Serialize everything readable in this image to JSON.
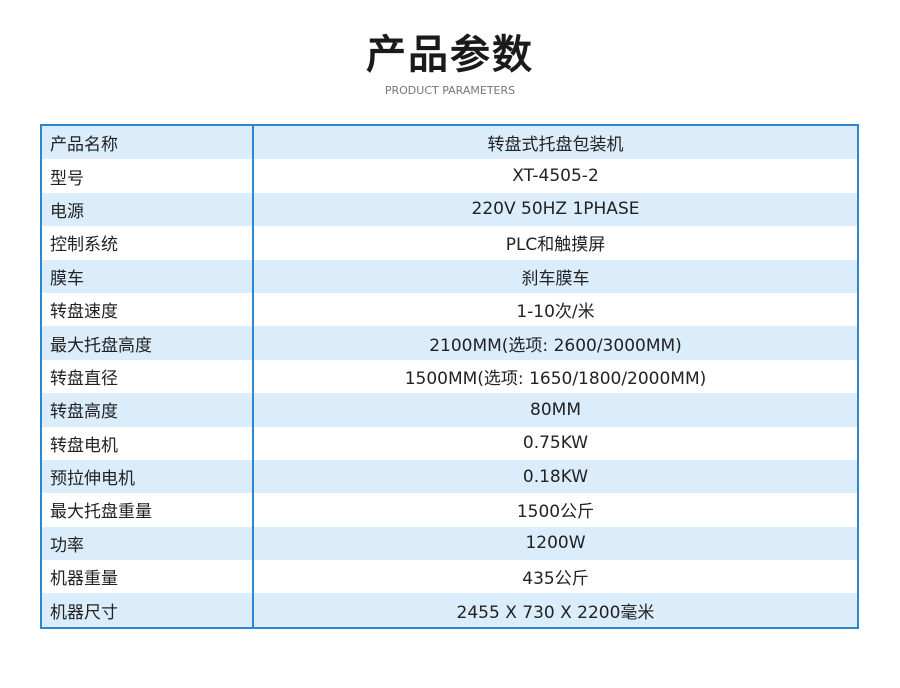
{
  "header": {
    "title": "产品参数",
    "subtitle": "PRODUCT PARAMETERS"
  },
  "table": {
    "rows": [
      [
        "产品名称",
        "转盘式托盘包装机"
      ],
      [
        "型号",
        "XT-4505-2"
      ],
      [
        "电源",
        "220V 50HZ 1PHASE"
      ],
      [
        "控制系统",
        "PLC和触摸屏"
      ],
      [
        "膜车",
        "刹车膜车"
      ],
      [
        "转盘速度",
        "1-10次/米"
      ],
      [
        "最大托盘高度",
        "2100MM(选项: 2600/3000MM)"
      ],
      [
        "转盘直径",
        "1500MM(选项: 1650/1800/2000MM)"
      ],
      [
        "转盘高度",
        "80MM"
      ],
      [
        "转盘电机",
        "0.75KW"
      ],
      [
        "预拉伸电机",
        "0.18KW"
      ],
      [
        "最大托盘重量",
        "1500公斤"
      ],
      [
        "功率",
        "1200W"
      ],
      [
        "机器重量",
        "435公斤"
      ],
      [
        "机器尺寸",
        "2455 X 730 X 2200毫米"
      ]
    ]
  }
}
